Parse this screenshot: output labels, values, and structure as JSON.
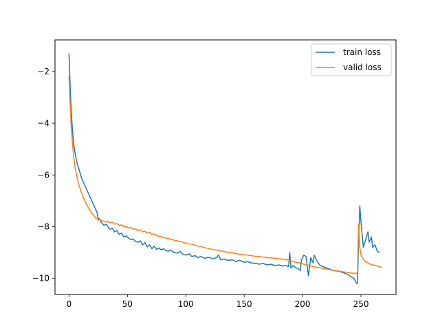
{
  "chart_data": {
    "type": "line",
    "title": "",
    "xlabel": "",
    "ylabel": "",
    "xlim": [
      -12,
      280
    ],
    "ylim": [
      -10.62,
      -0.78
    ],
    "xticks": [
      0,
      50,
      100,
      150,
      200,
      250
    ],
    "yticks": [
      -2,
      -4,
      -6,
      -8,
      -10
    ],
    "xtick_labels": [
      "0",
      "50",
      "100",
      "150",
      "200",
      "250"
    ],
    "ytick_labels": [
      "−2",
      "−4",
      "−6",
      "−8",
      "−10"
    ],
    "grid": false,
    "legend_position": "upper-right",
    "series": [
      {
        "name": "train loss",
        "color": "#1f77b4",
        "points": [
          [
            0,
            -1.3
          ],
          [
            1,
            -2.6
          ],
          [
            2,
            -3.6
          ],
          [
            3,
            -4.3
          ],
          [
            4,
            -4.8
          ],
          [
            5,
            -5.1
          ],
          [
            6,
            -5.35
          ],
          [
            7,
            -5.55
          ],
          [
            8,
            -5.7
          ],
          [
            9,
            -5.85
          ],
          [
            10,
            -6.0
          ],
          [
            11,
            -6.15
          ],
          [
            12,
            -6.25
          ],
          [
            13,
            -6.35
          ],
          [
            14,
            -6.45
          ],
          [
            15,
            -6.55
          ],
          [
            16,
            -6.65
          ],
          [
            17,
            -6.75
          ],
          [
            18,
            -6.85
          ],
          [
            19,
            -6.95
          ],
          [
            20,
            -7.05
          ],
          [
            21,
            -7.15
          ],
          [
            22,
            -7.25
          ],
          [
            23,
            -7.35
          ],
          [
            24,
            -7.45
          ],
          [
            25,
            -7.75
          ],
          [
            26,
            -7.68
          ],
          [
            27,
            -7.8
          ],
          [
            28,
            -7.85
          ],
          [
            30,
            -7.95
          ],
          [
            32,
            -7.9
          ],
          [
            34,
            -8.05
          ],
          [
            35,
            -8.1
          ],
          [
            37,
            -8.05
          ],
          [
            39,
            -8.2
          ],
          [
            41,
            -8.15
          ],
          [
            43,
            -8.3
          ],
          [
            45,
            -8.25
          ],
          [
            47,
            -8.4
          ],
          [
            49,
            -8.35
          ],
          [
            51,
            -8.45
          ],
          [
            53,
            -8.5
          ],
          [
            55,
            -8.48
          ],
          [
            57,
            -8.58
          ],
          [
            59,
            -8.6
          ],
          [
            61,
            -8.55
          ],
          [
            63,
            -8.7
          ],
          [
            65,
            -8.62
          ],
          [
            67,
            -8.78
          ],
          [
            69,
            -8.7
          ],
          [
            71,
            -8.85
          ],
          [
            73,
            -8.75
          ],
          [
            75,
            -8.88
          ],
          [
            77,
            -8.82
          ],
          [
            79,
            -8.9
          ],
          [
            81,
            -8.85
          ],
          [
            83,
            -8.92
          ],
          [
            85,
            -8.95
          ],
          [
            87,
            -8.9
          ],
          [
            90,
            -9.0
          ],
          [
            93,
            -9.02
          ],
          [
            95,
            -8.95
          ],
          [
            97,
            -9.05
          ],
          [
            100,
            -9.1
          ],
          [
            103,
            -9.05
          ],
          [
            105,
            -9.15
          ],
          [
            108,
            -9.12
          ],
          [
            110,
            -9.2
          ],
          [
            113,
            -9.15
          ],
          [
            116,
            -9.22
          ],
          [
            120,
            -9.18
          ],
          [
            123,
            -9.25
          ],
          [
            126,
            -9.2
          ],
          [
            128,
            -9.1
          ],
          [
            130,
            -9.28
          ],
          [
            133,
            -9.25
          ],
          [
            136,
            -9.3
          ],
          [
            140,
            -9.28
          ],
          [
            143,
            -9.35
          ],
          [
            146,
            -9.3
          ],
          [
            150,
            -9.38
          ],
          [
            153,
            -9.35
          ],
          [
            156,
            -9.4
          ],
          [
            160,
            -9.42
          ],
          [
            163,
            -9.45
          ],
          [
            166,
            -9.42
          ],
          [
            170,
            -9.48
          ],
          [
            173,
            -9.45
          ],
          [
            176,
            -9.5
          ],
          [
            180,
            -9.48
          ],
          [
            183,
            -9.52
          ],
          [
            186,
            -9.5
          ],
          [
            188,
            -9.55
          ],
          [
            189,
            -9.0
          ],
          [
            190,
            -9.6
          ],
          [
            192,
            -9.5
          ],
          [
            194,
            -9.58
          ],
          [
            196,
            -9.62
          ],
          [
            198,
            -9.7
          ],
          [
            199,
            -9.3
          ],
          [
            201,
            -9.1
          ],
          [
            203,
            -9.15
          ],
          [
            205,
            -9.9
          ],
          [
            207,
            -9.2
          ],
          [
            209,
            -9.4
          ],
          [
            210,
            -9.1
          ],
          [
            212,
            -9.3
          ],
          [
            215,
            -9.5
          ],
          [
            218,
            -9.55
          ],
          [
            221,
            -9.6
          ],
          [
            224,
            -9.65
          ],
          [
            227,
            -9.7
          ],
          [
            230,
            -9.72
          ],
          [
            233,
            -9.75
          ],
          [
            236,
            -9.8
          ],
          [
            239,
            -9.85
          ],
          [
            242,
            -9.95
          ],
          [
            244,
            -10.0
          ],
          [
            246,
            -10.18
          ],
          [
            247,
            -10.2
          ],
          [
            248,
            -8.5
          ],
          [
            249,
            -7.2
          ],
          [
            250,
            -7.8
          ],
          [
            251,
            -8.3
          ],
          [
            252,
            -8.8
          ],
          [
            254,
            -8.5
          ],
          [
            256,
            -8.2
          ],
          [
            257,
            -8.6
          ],
          [
            259,
            -8.4
          ],
          [
            260,
            -8.8
          ],
          [
            262,
            -8.7
          ],
          [
            264,
            -8.95
          ],
          [
            266,
            -9.0
          ]
        ]
      },
      {
        "name": "valid loss",
        "color": "#ff7f0e",
        "points": [
          [
            0,
            -2.2
          ],
          [
            1,
            -3.3
          ],
          [
            2,
            -4.2
          ],
          [
            3,
            -4.8
          ],
          [
            4,
            -5.3
          ],
          [
            5,
            -5.65
          ],
          [
            6,
            -5.9
          ],
          [
            7,
            -6.1
          ],
          [
            8,
            -6.3
          ],
          [
            9,
            -6.45
          ],
          [
            10,
            -6.6
          ],
          [
            11,
            -6.72
          ],
          [
            12,
            -6.85
          ],
          [
            13,
            -6.95
          ],
          [
            14,
            -7.05
          ],
          [
            15,
            -7.15
          ],
          [
            16,
            -7.22
          ],
          [
            17,
            -7.3
          ],
          [
            18,
            -7.38
          ],
          [
            19,
            -7.45
          ],
          [
            20,
            -7.5
          ],
          [
            21,
            -7.55
          ],
          [
            22,
            -7.62
          ],
          [
            23,
            -7.68
          ],
          [
            25,
            -7.65
          ],
          [
            27,
            -7.75
          ],
          [
            29,
            -7.78
          ],
          [
            31,
            -7.82
          ],
          [
            33,
            -7.8
          ],
          [
            35,
            -7.85
          ],
          [
            37,
            -7.82
          ],
          [
            39,
            -7.9
          ],
          [
            41,
            -7.88
          ],
          [
            43,
            -7.95
          ],
          [
            45,
            -7.93
          ],
          [
            47,
            -8.0
          ],
          [
            49,
            -7.98
          ],
          [
            51,
            -8.05
          ],
          [
            53,
            -8.03
          ],
          [
            55,
            -8.1
          ],
          [
            57,
            -8.08
          ],
          [
            59,
            -8.15
          ],
          [
            61,
            -8.12
          ],
          [
            63,
            -8.2
          ],
          [
            65,
            -8.18
          ],
          [
            67,
            -8.25
          ],
          [
            69,
            -8.22
          ],
          [
            71,
            -8.3
          ],
          [
            73,
            -8.28
          ],
          [
            75,
            -8.35
          ],
          [
            78,
            -8.38
          ],
          [
            81,
            -8.42
          ],
          [
            84,
            -8.45
          ],
          [
            87,
            -8.48
          ],
          [
            90,
            -8.52
          ],
          [
            93,
            -8.55
          ],
          [
            96,
            -8.58
          ],
          [
            99,
            -8.62
          ],
          [
            102,
            -8.65
          ],
          [
            105,
            -8.68
          ],
          [
            108,
            -8.72
          ],
          [
            111,
            -8.75
          ],
          [
            114,
            -8.78
          ],
          [
            117,
            -8.82
          ],
          [
            120,
            -8.85
          ],
          [
            123,
            -8.88
          ],
          [
            126,
            -8.9
          ],
          [
            129,
            -8.93
          ],
          [
            132,
            -8.95
          ],
          [
            135,
            -8.98
          ],
          [
            138,
            -9.0
          ],
          [
            141,
            -9.02
          ],
          [
            144,
            -9.05
          ],
          [
            147,
            -9.07
          ],
          [
            150,
            -9.08
          ],
          [
            153,
            -9.1
          ],
          [
            156,
            -9.12
          ],
          [
            159,
            -9.14
          ],
          [
            162,
            -9.15
          ],
          [
            165,
            -9.17
          ],
          [
            168,
            -9.18
          ],
          [
            171,
            -9.2
          ],
          [
            174,
            -9.21
          ],
          [
            177,
            -9.22
          ],
          [
            180,
            -9.24
          ],
          [
            183,
            -9.25
          ],
          [
            186,
            -9.28
          ],
          [
            189,
            -9.3
          ],
          [
            192,
            -9.35
          ],
          [
            195,
            -9.38
          ],
          [
            198,
            -9.4
          ],
          [
            201,
            -9.45
          ],
          [
            204,
            -9.5
          ],
          [
            207,
            -9.52
          ],
          [
            210,
            -9.55
          ],
          [
            213,
            -9.58
          ],
          [
            216,
            -9.6
          ],
          [
            219,
            -9.63
          ],
          [
            222,
            -9.65
          ],
          [
            225,
            -9.68
          ],
          [
            228,
            -9.7
          ],
          [
            231,
            -9.72
          ],
          [
            234,
            -9.74
          ],
          [
            237,
            -9.76
          ],
          [
            240,
            -9.78
          ],
          [
            243,
            -9.8
          ],
          [
            246,
            -9.8
          ],
          [
            247,
            -9.78
          ],
          [
            248,
            -7.9
          ],
          [
            249,
            -8.8
          ],
          [
            250,
            -9.1
          ],
          [
            252,
            -9.25
          ],
          [
            254,
            -9.35
          ],
          [
            256,
            -9.4
          ],
          [
            258,
            -9.45
          ],
          [
            260,
            -9.48
          ],
          [
            262,
            -9.5
          ],
          [
            264,
            -9.52
          ],
          [
            266,
            -9.55
          ],
          [
            268,
            -9.58
          ]
        ]
      }
    ]
  }
}
